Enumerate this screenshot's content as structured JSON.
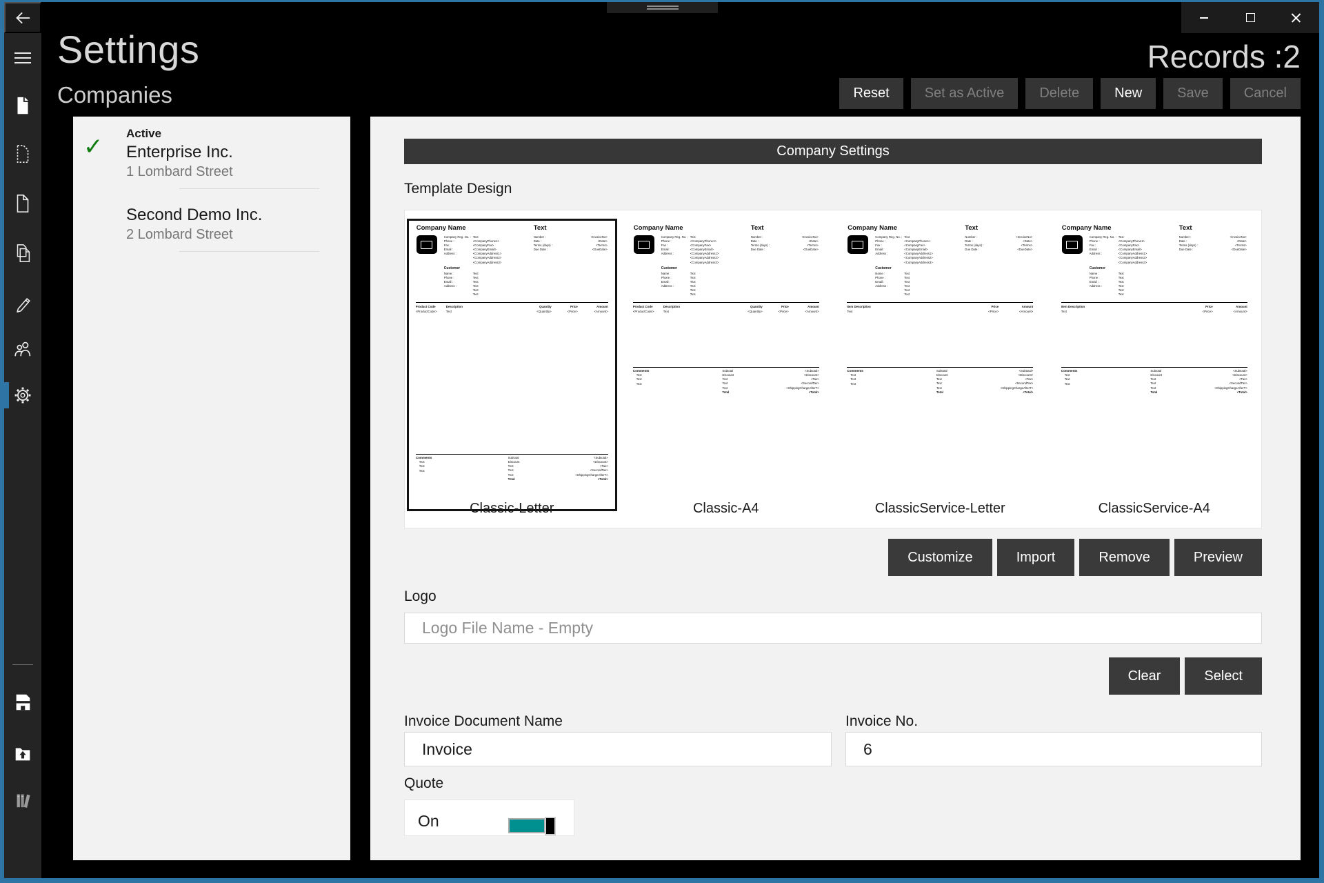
{
  "colors": {
    "window_border_accent": "#2e74a4",
    "toggle_teal": "#00908f",
    "active_check_green": "#107C10",
    "panel_bg": "#f2f2f2",
    "dark_button": "#3a3a3a"
  },
  "window": {
    "controls": [
      {
        "name": "minimize"
      },
      {
        "name": "maximize"
      },
      {
        "name": "close"
      }
    ]
  },
  "sidebar": {
    "back_icon": "back-arrow-icon",
    "top_icons": [
      "hamburger-menu-icon",
      "document-filled-icon",
      "document-dashed-icon",
      "document-outline-icon",
      "documents-copy-icon",
      "pencil-edit-icon",
      "people-customers-icon",
      "gear-settings-icon"
    ],
    "selected_icon": "gear-settings-icon",
    "bottom_icons": [
      "floppy-save-icon",
      "folder-upload-icon",
      "library-books-icon"
    ]
  },
  "header": {
    "title": "Settings",
    "subtitle": "Companies",
    "records": "Records :2"
  },
  "toolbar": {
    "buttons": [
      {
        "label": "Reset",
        "enabled": true
      },
      {
        "label": "Set as Active",
        "enabled": false
      },
      {
        "label": "Delete",
        "enabled": false
      },
      {
        "label": "New",
        "enabled": true
      },
      {
        "label": "Save",
        "enabled": false
      },
      {
        "label": "Cancel",
        "enabled": false
      }
    ]
  },
  "companies": {
    "active_label": "Active",
    "items": [
      {
        "name": "Enterprise Inc.",
        "address": "1 Lombard Street",
        "active": true
      },
      {
        "name": "Second Demo Inc.",
        "address": "2 Lombard Street",
        "active": false
      }
    ]
  },
  "settings_panel": {
    "section_title": "Company Settings",
    "template_design_label": "Template Design",
    "templates": [
      {
        "name": "Classic-Letter",
        "selected": true,
        "layout": "product"
      },
      {
        "name": "Classic-A4",
        "selected": false,
        "layout": "product"
      },
      {
        "name": "ClassicService-Letter",
        "selected": false,
        "layout": "service"
      },
      {
        "name": "ClassicService-A4",
        "selected": false,
        "layout": "service"
      }
    ],
    "template_buttons": [
      "Customize",
      "Import",
      "Remove",
      "Preview"
    ],
    "logo_label": "Logo",
    "logo_placeholder": "Logo File Name - Empty",
    "logo_buttons": [
      "Clear",
      "Select"
    ],
    "invoice_doc_label": "Invoice Document Name",
    "invoice_doc_value": "Invoice",
    "invoice_no_label": "Invoice No.",
    "invoice_no_value": "6",
    "quote_label": "Quote",
    "quote_state": "On"
  },
  "template_preview": {
    "company_name": "Company Name",
    "company_fields": [
      [
        "Company Reg. No. :",
        "Text"
      ],
      [
        "Phone :",
        "<CompanyPhone1>"
      ],
      [
        "Fax :",
        "<CompanyFax>"
      ],
      [
        "Email :",
        "<CompanyEmail>"
      ],
      [
        "Address :",
        "<CompanyAddress1>"
      ],
      [
        "",
        "<CompanyAddress2>"
      ],
      [
        "",
        "<CompanyAddress3>"
      ]
    ],
    "customer_title": "Customer",
    "customer_fields": [
      [
        "Name :",
        "Text"
      ],
      [
        "Phone :",
        "Text"
      ],
      [
        "Email :",
        "Text"
      ],
      [
        "Address :",
        "Text"
      ],
      [
        "",
        "Text"
      ],
      [
        "",
        "Text"
      ]
    ],
    "invoice_block_title": "Text",
    "invoice_fields": [
      [
        "Number :",
        "<InvoiceNo>"
      ],
      [
        "Date :",
        "<Date>"
      ],
      [
        "Terms (days) :",
        "<Terms>"
      ],
      [
        "Due Date :",
        "<DueDate>"
      ]
    ],
    "product_columns": [
      "Product Code",
      "Description",
      "Quantity",
      "Price",
      "Amount"
    ],
    "product_row": [
      "<ProductCode>",
      "Text",
      "<Quantity>",
      "<Price>",
      "<Amount>"
    ],
    "service_columns": [
      "Item Description",
      "Price",
      "Amount"
    ],
    "service_row": [
      "Text",
      "<Price>",
      "<Amount>"
    ],
    "comments_title": "Comments",
    "comments_rows": [
      "Text",
      "Text",
      "Text"
    ],
    "totals_rows": [
      [
        "Subtotal",
        "<Subtotal>"
      ],
      [
        "Discount",
        "<Discount>"
      ],
      [
        "Text",
        "<Tax>"
      ],
      [
        "Text",
        "<SecondTax>"
      ],
      [
        "Text",
        "<ShippingChargeAfterT>"
      ],
      [
        "Total",
        "<Total>"
      ]
    ]
  }
}
